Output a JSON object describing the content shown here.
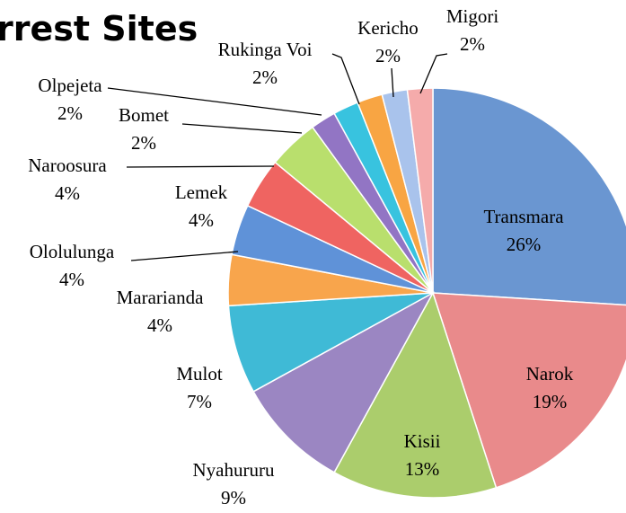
{
  "chart_data": {
    "type": "pie",
    "title": "rrest Sites",
    "categories": [
      "Transmara",
      "Narok",
      "Kisii",
      "Nyahururu",
      "Mulot",
      "Mararianda",
      "Ololulunga",
      "Lemek",
      "Naroosura",
      "Bomet",
      "Olpejeta",
      "Rukinga Voi",
      "Kericho",
      "Migori"
    ],
    "values": [
      26,
      19,
      13,
      9,
      7,
      4,
      4,
      4,
      4,
      2,
      2,
      2,
      2,
      2
    ],
    "value_labels": [
      "26%",
      "19%",
      "13%",
      "9%",
      "7%",
      "4%",
      "4%",
      "4%",
      "4%",
      "2%",
      "2%",
      "2%",
      "2%",
      "2%"
    ],
    "colors": [
      "#6a96d1",
      "#e98a8b",
      "#abcd6c",
      "#9b86c2",
      "#3fbad6",
      "#f8a54c",
      "#5f92d8",
      "#ef6461",
      "#b9df6d",
      "#9275c4",
      "#38c3df",
      "#f8a543",
      "#a9c3ec",
      "#f5abab"
    ]
  }
}
